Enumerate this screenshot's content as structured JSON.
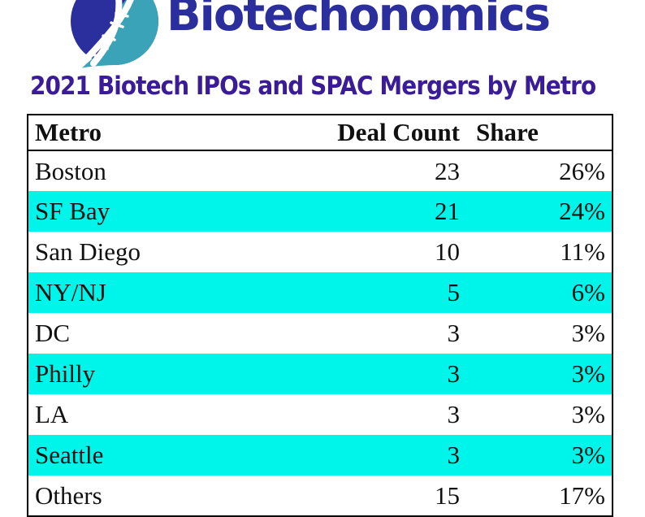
{
  "logo": {
    "brand": "Biotechonomics",
    "icon": "dna-helix-icon",
    "colors": {
      "navy": "#2B2F9E",
      "teal": "#3BA3B8"
    }
  },
  "title": {
    "text": "2021 Biotech IPOs and SPAC Mergers by Metro",
    "color": "#3A1D96"
  },
  "table": {
    "zebra_color": "#00F5EA",
    "columns": [
      "Metro",
      "Deal Count",
      "Share"
    ],
    "rows": [
      {
        "metro": "Boston",
        "deal_count": "23",
        "share": "26%"
      },
      {
        "metro": "SF Bay",
        "deal_count": "21",
        "share": "24%"
      },
      {
        "metro": "San Diego",
        "deal_count": "10",
        "share": "11%"
      },
      {
        "metro": "NY/NJ",
        "deal_count": "5",
        "share": "6%"
      },
      {
        "metro": "DC",
        "deal_count": "3",
        "share": "3%"
      },
      {
        "metro": "Philly",
        "deal_count": "3",
        "share": "3%"
      },
      {
        "metro": "LA",
        "deal_count": "3",
        "share": "3%"
      },
      {
        "metro": "Seattle",
        "deal_count": "3",
        "share": "3%"
      },
      {
        "metro": "Others",
        "deal_count": "15",
        "share": "17%"
      }
    ]
  },
  "chart_data": {
    "type": "table",
    "title": "2021 Biotech IPOs and SPAC Mergers by Metro",
    "columns": [
      "Metro",
      "Deal Count",
      "Share"
    ],
    "rows": [
      [
        "Boston",
        23,
        "26%"
      ],
      [
        "SF Bay",
        21,
        "24%"
      ],
      [
        "San Diego",
        10,
        "11%"
      ],
      [
        "NY/NJ",
        5,
        "6%"
      ],
      [
        "DC",
        3,
        "3%"
      ],
      [
        "Philly",
        3,
        "3%"
      ],
      [
        "LA",
        3,
        "3%"
      ],
      [
        "Seattle",
        3,
        "3%"
      ],
      [
        "Others",
        15,
        "17%"
      ]
    ]
  }
}
